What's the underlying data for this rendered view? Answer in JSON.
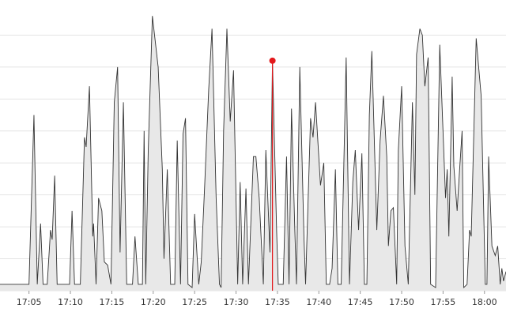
{
  "chart_data": {
    "type": "area",
    "x": [
      1.5,
      5.0,
      5.6,
      6.0,
      6.4,
      6.7,
      7.2,
      7.6,
      7.8,
      8.1,
      8.4,
      9.9,
      10.2,
      10.5,
      11.2,
      11.7,
      11.9,
      12.3,
      12.7,
      12.8,
      13.1,
      13.4,
      13.8,
      14.1,
      14.5,
      14.9,
      15.3,
      15.7,
      16.0,
      16.4,
      16.8,
      17.5,
      17.8,
      18.2,
      18.7,
      18.9,
      19.1,
      19.4,
      19.9,
      20.6,
      21.1,
      21.3,
      21.7,
      22.1,
      22.6,
      22.9,
      23.3,
      23.6,
      23.9,
      24.2,
      24.7,
      25.0,
      25.5,
      25.8,
      26.2,
      26.7,
      27.1,
      27.6,
      28.0,
      28.2,
      28.5,
      28.9,
      29.3,
      29.7,
      30.2,
      30.5,
      30.8,
      31.2,
      31.5,
      32.1,
      32.4,
      32.8,
      33.3,
      33.6,
      34.1,
      34.4,
      34.9,
      35.1,
      35.7,
      36.1,
      36.4,
      36.7,
      37.1,
      37.3,
      37.7,
      38.2,
      38.4,
      38.7,
      39.0,
      39.3,
      39.6,
      40.2,
      40.6,
      40.9,
      41.3,
      41.6,
      42.0,
      42.3,
      42.7,
      43.3,
      43.7,
      44.1,
      44.4,
      44.8,
      45.2,
      45.5,
      45.8,
      46.1,
      46.4,
      47.0,
      47.4,
      47.8,
      48.2,
      48.4,
      48.7,
      49.0,
      49.4,
      49.6,
      50.0,
      50.4,
      50.8,
      51.3,
      51.6,
      51.8,
      52.2,
      52.5,
      52.8,
      53.2,
      53.5,
      54.1,
      54.6,
      55.3,
      55.5,
      55.7,
      56.1,
      56.3,
      56.7,
      57.0,
      57.3,
      57.5,
      57.9,
      58.2,
      58.4,
      59.0,
      59.6,
      60.1,
      60.3,
      60.5,
      60.9,
      61.3,
      61.6,
      61.9,
      62.1,
      62.3,
      62.6
    ],
    "values": [
      0.2,
      0.2,
      5.5,
      0.2,
      2.1,
      0.2,
      0.2,
      1.9,
      1.6,
      3.6,
      0.2,
      0.2,
      2.5,
      0.2,
      0.2,
      4.8,
      4.5,
      6.4,
      1.7,
      2.1,
      0.2,
      2.9,
      2.5,
      0.9,
      0.8,
      0.2,
      5.9,
      7.0,
      1.2,
      5.9,
      0.2,
      0.2,
      1.7,
      0.2,
      0.2,
      5.0,
      0.2,
      4.4,
      8.6,
      7.0,
      3.8,
      1.0,
      3.8,
      0.2,
      0.2,
      4.7,
      0.2,
      4.9,
      5.4,
      0.2,
      0.1,
      2.4,
      0.2,
      0.9,
      3.2,
      6.3,
      8.2,
      2.9,
      0.2,
      0.1,
      5.0,
      8.2,
      5.3,
      6.9,
      0.2,
      3.4,
      0.2,
      3.2,
      0.2,
      4.2,
      4.2,
      2.9,
      0.2,
      4.4,
      1.2,
      7.2,
      1.9,
      0.2,
      0.2,
      4.2,
      0.2,
      5.7,
      1.9,
      0.2,
      7.0,
      1.7,
      0.2,
      2.8,
      5.4,
      4.8,
      5.9,
      3.3,
      4.0,
      0.2,
      0.2,
      0.7,
      3.8,
      0.2,
      0.2,
      7.3,
      0.2,
      3.4,
      4.4,
      1.9,
      4.3,
      0.2,
      0.2,
      5.5,
      7.5,
      1.9,
      4.7,
      6.1,
      4.2,
      1.4,
      2.5,
      2.6,
      0.2,
      4.4,
      6.4,
      1.4,
      0.2,
      5.9,
      3.0,
      7.4,
      8.2,
      8.0,
      6.4,
      7.3,
      0.2,
      0.1,
      7.7,
      2.9,
      3.8,
      1.7,
      6.7,
      3.9,
      2.5,
      3.8,
      5.0,
      0.1,
      0.2,
      1.9,
      1.7,
      7.9,
      6.1,
      0.2,
      0.2,
      4.2,
      1.4,
      1.1,
      1.4,
      0.2,
      0.7,
      0.3,
      0.6
    ],
    "color": "#e8e8e8",
    "line_color": "#333333",
    "highlight_index": 75,
    "highlight_color": "#e3191c",
    "xlim": [
      1.5,
      62.6
    ],
    "xticks": [
      {
        "value": 5,
        "label": "17:05"
      },
      {
        "value": 10,
        "label": "17:10"
      },
      {
        "value": 15,
        "label": "17:15"
      },
      {
        "value": 20,
        "label": "17:20"
      },
      {
        "value": 25,
        "label": "17:25"
      },
      {
        "value": 30,
        "label": "17:30"
      },
      {
        "value": 35,
        "label": "17:35"
      },
      {
        "value": 40,
        "label": "17:40"
      },
      {
        "value": 45,
        "label": "17:45"
      },
      {
        "value": 50,
        "label": "17:50"
      },
      {
        "value": 55,
        "label": "17:55"
      },
      {
        "value": 60,
        "label": "18:00"
      }
    ],
    "ylim": [
      0,
      9.1
    ],
    "yticks": [
      0,
      1,
      2,
      3,
      4,
      5,
      6,
      7,
      8
    ],
    "grid": true
  }
}
